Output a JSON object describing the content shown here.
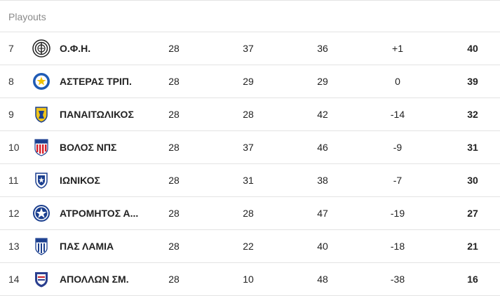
{
  "section": {
    "title": "Playouts"
  },
  "rows": [
    {
      "pos": "7",
      "team": "Ο.Φ.Η.",
      "played": "28",
      "goals_for": "37",
      "goals_against": "36",
      "goal_diff": "+1",
      "points": "40",
      "logo_icon": "ofi-crest-icon"
    },
    {
      "pos": "8",
      "team": "ΑΣΤΕΡΑΣ ΤΡΙΠ.",
      "played": "28",
      "goals_for": "29",
      "goals_against": "29",
      "goal_diff": "0",
      "points": "39",
      "logo_icon": "asteras-tripolis-crest-icon"
    },
    {
      "pos": "9",
      "team": "ΠΑΝΑΙΤΩΛΙΚΟΣ",
      "played": "28",
      "goals_for": "28",
      "goals_against": "42",
      "goal_diff": "-14",
      "points": "32",
      "logo_icon": "panetolikos-crest-icon"
    },
    {
      "pos": "10",
      "team": "ΒΟΛΟΣ ΝΠΣ",
      "played": "28",
      "goals_for": "37",
      "goals_against": "46",
      "goal_diff": "-9",
      "points": "31",
      "logo_icon": "volos-crest-icon"
    },
    {
      "pos": "11",
      "team": "ΙΩΝΙΚΟΣ",
      "played": "28",
      "goals_for": "31",
      "goals_against": "38",
      "goal_diff": "-7",
      "points": "30",
      "logo_icon": "ionikos-crest-icon"
    },
    {
      "pos": "12",
      "team": "ΑΤΡΟΜΗΤΟΣ Α...",
      "played": "28",
      "goals_for": "28",
      "goals_against": "47",
      "goal_diff": "-19",
      "points": "27",
      "logo_icon": "atromitos-crest-icon"
    },
    {
      "pos": "13",
      "team": "ΠΑΣ ΛΑΜΙΑ",
      "played": "28",
      "goals_for": "22",
      "goals_against": "40",
      "goal_diff": "-18",
      "points": "21",
      "logo_icon": "lamia-crest-icon"
    },
    {
      "pos": "14",
      "team": "ΑΠΟΛΛΩΝ ΣΜ.",
      "played": "28",
      "goals_for": "10",
      "goals_against": "48",
      "goal_diff": "-38",
      "points": "16",
      "logo_icon": "apollon-smyrnis-crest-icon"
    }
  ],
  "colors": {
    "border": "#e3e3e3",
    "header_text": "#8a8a8a"
  }
}
